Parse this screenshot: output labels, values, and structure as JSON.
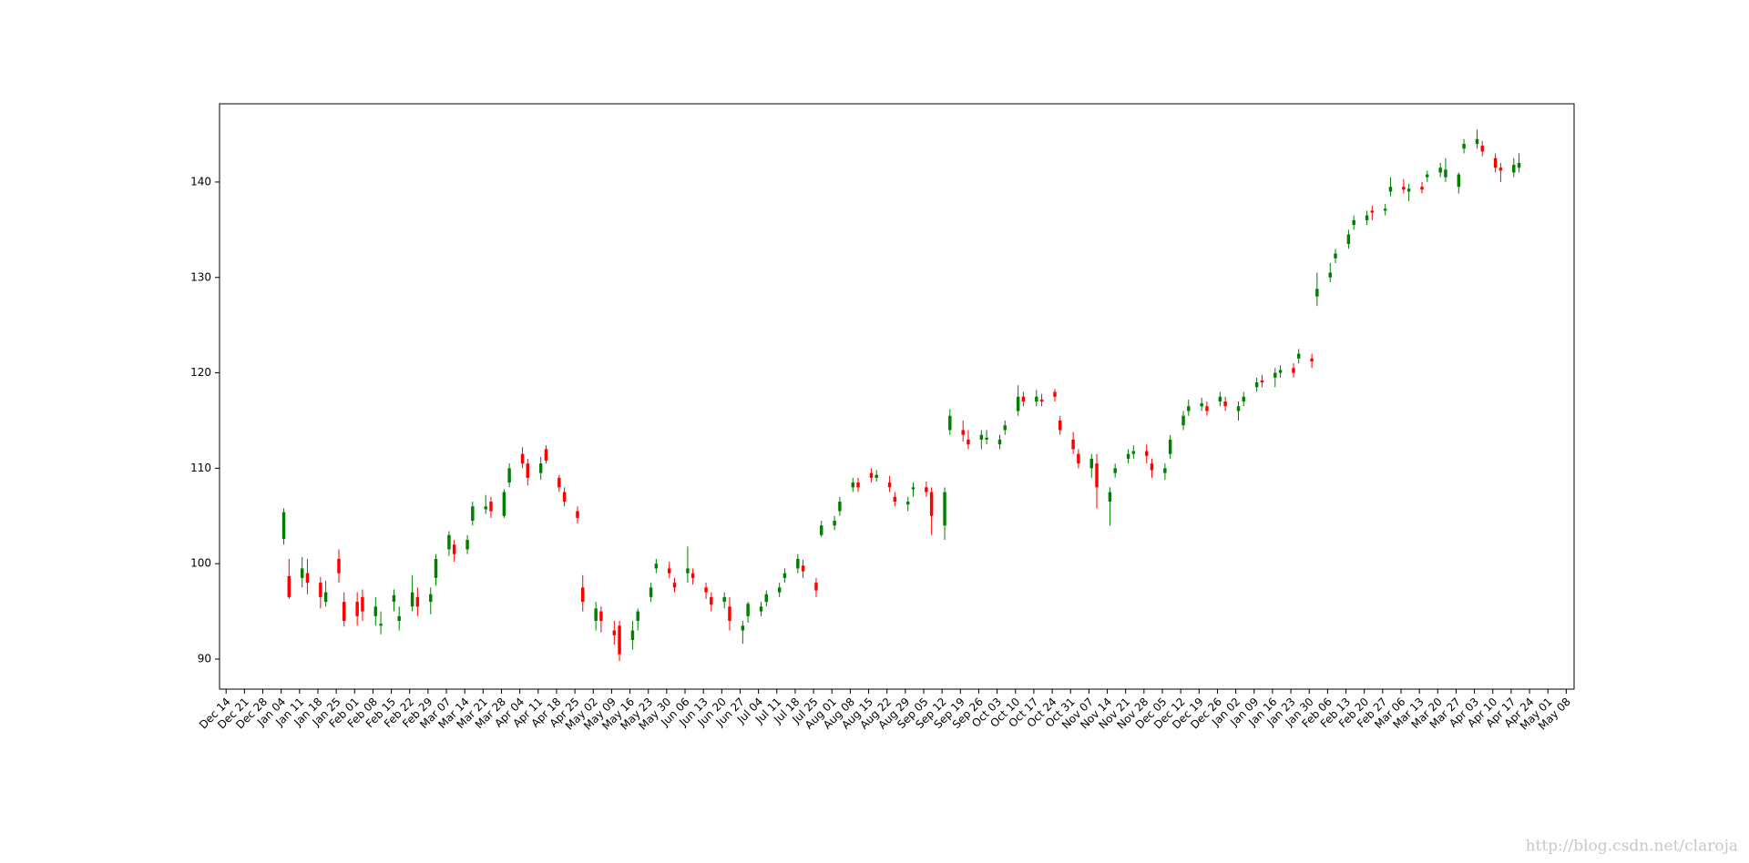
{
  "chart_data": {
    "type": "candlestick",
    "colorup": "green",
    "colordown": "red",
    "x": [
      22,
      24,
      29,
      31,
      36,
      38,
      43,
      45,
      50,
      52,
      57,
      59,
      64,
      66,
      71,
      73,
      78,
      80,
      85,
      87,
      92,
      94,
      99,
      101,
      106,
      108,
      113,
      115,
      120,
      122,
      127,
      129,
      134,
      136,
      141,
      143,
      148,
      150,
      155,
      157,
      162,
      164,
      169,
      171,
      176,
      178,
      183,
      185,
      190,
      192,
      197,
      199,
      204,
      206,
      211,
      213,
      218,
      220,
      225,
      227,
      232,
      234,
      239,
      241,
      246,
      248,
      253,
      255,
      260,
      262,
      267,
      269,
      274,
      276,
      281,
      283,
      288,
      290,
      295,
      297,
      302,
      304,
      309,
      311,
      316,
      318,
      323,
      325,
      330,
      332,
      337,
      339,
      344,
      346,
      351,
      353,
      358,
      360,
      365,
      367,
      372,
      374,
      379,
      381,
      386,
      388,
      393,
      395,
      400,
      402,
      407,
      409,
      414,
      416,
      421,
      423,
      428,
      430,
      435,
      437,
      442,
      444,
      449,
      451,
      456,
      458,
      463,
      465,
      470,
      472,
      477,
      479,
      484,
      486,
      491,
      493
    ],
    "open": [
      102.6,
      98.7,
      98.5,
      99.0,
      98.0,
      96.0,
      100.5,
      96.0,
      96.0,
      96.5,
      94.5,
      93.5,
      96.0,
      94.0,
      95.5,
      96.5,
      96.0,
      98.5,
      101.5,
      102.0,
      101.5,
      104.5,
      105.7,
      106.5,
      105.0,
      108.5,
      111.5,
      110.5,
      109.5,
      112.0,
      109.0,
      107.5,
      105.5,
      97.5,
      94.0,
      95.0,
      93.0,
      93.5,
      92.0,
      94.0,
      96.5,
      99.5,
      99.5,
      98.0,
      99.0,
      99.0,
      97.5,
      96.5,
      96.0,
      95.5,
      93.0,
      94.5,
      95.0,
      96.0,
      97.0,
      98.5,
      99.5,
      99.8,
      98.0,
      103.0,
      104.0,
      105.5,
      108.0,
      108.5,
      109.5,
      109.0,
      108.5,
      107.0,
      106.2,
      107.8,
      108.0,
      107.5,
      104.0,
      114.0,
      114.0,
      113.0,
      113.0,
      113.0,
      112.5,
      114.0,
      116.0,
      117.5,
      117.0,
      117.2,
      118.0,
      115.0,
      113.0,
      111.5,
      110.0,
      110.5,
      106.5,
      109.5,
      111.0,
      111.5,
      111.8,
      110.5,
      109.5,
      111.5,
      114.5,
      116.0,
      116.5,
      116.5,
      117.0,
      117.0,
      116.0,
      117.0,
      118.5,
      119.2,
      119.5,
      120.0,
      120.5,
      121.5,
      121.5,
      128.0,
      130.0,
      132.0,
      133.5,
      135.5,
      136.0,
      137.0,
      137.0,
      139.0,
      139.5,
      139.0,
      139.5,
      140.5,
      141.0,
      140.5,
      139.5,
      143.5,
      144.0,
      143.8,
      142.5,
      141.5,
      141.0,
      141.5
    ],
    "high": [
      105.8,
      100.5,
      100.7,
      100.5,
      98.6,
      98.2,
      101.5,
      97.0,
      97.0,
      97.3,
      96.5,
      95.0,
      97.3,
      95.5,
      98.8,
      97.5,
      97.5,
      101.0,
      103.4,
      102.5,
      103.0,
      106.5,
      107.2,
      107.0,
      107.8,
      110.5,
      112.2,
      111.0,
      111.2,
      112.4,
      109.3,
      108.0,
      106.0,
      98.8,
      96.0,
      95.5,
      94.0,
      94.0,
      94.0,
      95.3,
      98.0,
      100.5,
      100.2,
      98.5,
      101.8,
      99.5,
      98.0,
      97.0,
      97.0,
      96.5,
      94.0,
      96.0,
      96.0,
      97.2,
      98.0,
      99.5,
      101.0,
      100.4,
      98.5,
      104.5,
      105.0,
      107.0,
      109.0,
      109.0,
      110.0,
      109.8,
      109.2,
      107.5,
      107.0,
      108.5,
      108.6,
      108.0,
      108.0,
      116.2,
      115.0,
      114.0,
      114.0,
      114.0,
      113.5,
      115.0,
      118.7,
      118.0,
      118.2,
      117.8,
      118.3,
      115.5,
      113.8,
      112.0,
      111.5,
      111.5,
      108.0,
      110.5,
      112.0,
      112.4,
      112.5,
      111.0,
      110.5,
      113.5,
      116.0,
      117.2,
      117.4,
      117.0,
      118.0,
      117.5,
      117.0,
      118.0,
      119.5,
      119.8,
      120.5,
      120.8,
      121.0,
      122.5,
      122.0,
      130.5,
      131.5,
      133.0,
      135.0,
      136.5,
      137.0,
      137.5,
      137.7,
      140.5,
      140.3,
      139.8,
      140.0,
      141.2,
      142.0,
      142.5,
      141.0,
      144.5,
      145.5,
      144.3,
      143.0,
      142.0,
      142.5,
      143.0
    ],
    "low": [
      102.0,
      96.3,
      97.5,
      96.8,
      95.3,
      95.5,
      98.0,
      93.4,
      93.5,
      94.0,
      93.5,
      92.6,
      95.0,
      93.0,
      95.0,
      94.5,
      94.7,
      97.7,
      100.8,
      100.2,
      101.0,
      104.0,
      105.2,
      104.8,
      104.8,
      108.0,
      110.0,
      108.2,
      108.8,
      110.5,
      107.5,
      106.0,
      104.2,
      95.0,
      93.0,
      92.8,
      91.5,
      89.8,
      91.0,
      93.0,
      96.0,
      99.0,
      98.5,
      97.0,
      98.0,
      97.8,
      96.3,
      95.0,
      95.3,
      93.0,
      91.6,
      93.8,
      94.5,
      95.5,
      96.5,
      98.0,
      99.0,
      98.5,
      96.5,
      102.8,
      103.5,
      105.0,
      107.5,
      107.5,
      108.5,
      108.6,
      107.5,
      106.0,
      105.5,
      107.0,
      107.0,
      103.0,
      102.5,
      113.5,
      112.8,
      112.0,
      112.0,
      112.5,
      112.0,
      113.5,
      115.5,
      116.5,
      116.5,
      116.5,
      117.0,
      113.5,
      111.5,
      110.0,
      109.0,
      105.8,
      104.0,
      109.0,
      110.5,
      111.0,
      110.5,
      109.0,
      108.8,
      111.0,
      114.0,
      115.5,
      116.0,
      115.5,
      116.5,
      116.0,
      115.0,
      116.5,
      118.0,
      118.5,
      118.5,
      119.5,
      119.5,
      121.0,
      120.5,
      127.0,
      129.5,
      131.5,
      133.0,
      135.0,
      135.5,
      136.0,
      136.5,
      138.5,
      138.8,
      138.0,
      138.8,
      140.0,
      140.5,
      140.0,
      138.8,
      143.0,
      143.5,
      142.7,
      141.0,
      140.0,
      140.5,
      141.0
    ],
    "close": [
      105.4,
      96.5,
      99.5,
      98.0,
      96.5,
      97.0,
      99.0,
      94.0,
      94.5,
      95.0,
      95.5,
      93.7,
      96.7,
      94.5,
      97.0,
      95.5,
      96.8,
      100.5,
      103.0,
      101.0,
      102.5,
      106.0,
      106.0,
      105.5,
      107.5,
      110.0,
      110.5,
      109.0,
      110.5,
      110.8,
      108.0,
      106.5,
      104.8,
      96.0,
      95.3,
      94.0,
      92.5,
      90.5,
      93.0,
      95.0,
      97.5,
      100.0,
      99.0,
      97.5,
      99.5,
      98.5,
      97.0,
      95.7,
      96.5,
      94.0,
      93.5,
      95.8,
      95.5,
      96.8,
      97.5,
      99.0,
      100.5,
      99.2,
      97.2,
      104.0,
      104.5,
      106.5,
      108.5,
      108.0,
      109.0,
      109.3,
      108.0,
      106.5,
      106.5,
      108.0,
      107.5,
      105.0,
      107.5,
      115.5,
      113.5,
      112.5,
      113.5,
      113.2,
      113.0,
      114.5,
      117.5,
      117.0,
      117.5,
      117.0,
      117.5,
      114.0,
      112.0,
      110.5,
      111.0,
      108.0,
      107.5,
      110.0,
      111.5,
      111.8,
      111.3,
      109.8,
      110.0,
      113.0,
      115.5,
      116.5,
      116.8,
      116.0,
      117.5,
      116.5,
      116.5,
      117.5,
      119.0,
      119.0,
      120.0,
      120.3,
      120.0,
      122.0,
      121.2,
      128.8,
      130.5,
      132.5,
      134.5,
      136.0,
      136.5,
      136.8,
      137.2,
      139.5,
      139.2,
      139.3,
      139.2,
      140.8,
      141.5,
      141.3,
      140.8,
      144.0,
      144.5,
      143.2,
      141.5,
      141.2,
      141.8,
      142.0
    ],
    "xlim": [
      -2.5,
      514
    ],
    "xticks": [
      {
        "value": 0,
        "label": "Dec 14"
      },
      {
        "value": 7,
        "label": "Dec 21"
      },
      {
        "value": 14,
        "label": "Dec 28"
      },
      {
        "value": 21,
        "label": "Jan 04"
      },
      {
        "value": 28,
        "label": "Jan 11"
      },
      {
        "value": 35,
        "label": "Jan 18"
      },
      {
        "value": 42,
        "label": "Jan 25"
      },
      {
        "value": 49,
        "label": "Feb 01"
      },
      {
        "value": 56,
        "label": "Feb 08"
      },
      {
        "value": 63,
        "label": "Feb 15"
      },
      {
        "value": 70,
        "label": "Feb 22"
      },
      {
        "value": 77,
        "label": "Feb 29"
      },
      {
        "value": 84,
        "label": "Mar 07"
      },
      {
        "value": 91,
        "label": "Mar 14"
      },
      {
        "value": 98,
        "label": "Mar 21"
      },
      {
        "value": 105,
        "label": "Mar 28"
      },
      {
        "value": 112,
        "label": "Apr 04"
      },
      {
        "value": 119,
        "label": "Apr 11"
      },
      {
        "value": 126,
        "label": "Apr 18"
      },
      {
        "value": 133,
        "label": "Apr 25"
      },
      {
        "value": 140,
        "label": "May 02"
      },
      {
        "value": 147,
        "label": "May 09"
      },
      {
        "value": 154,
        "label": "May 16"
      },
      {
        "value": 161,
        "label": "May 23"
      },
      {
        "value": 168,
        "label": "May 30"
      },
      {
        "value": 175,
        "label": "Jun 06"
      },
      {
        "value": 182,
        "label": "Jun 13"
      },
      {
        "value": 189,
        "label": "Jun 20"
      },
      {
        "value": 196,
        "label": "Jun 27"
      },
      {
        "value": 203,
        "label": "Jul 04"
      },
      {
        "value": 210,
        "label": "Jul 11"
      },
      {
        "value": 217,
        "label": "Jul 18"
      },
      {
        "value": 224,
        "label": "Jul 25"
      },
      {
        "value": 231,
        "label": "Aug 01"
      },
      {
        "value": 238,
        "label": "Aug 08"
      },
      {
        "value": 245,
        "label": "Aug 15"
      },
      {
        "value": 252,
        "label": "Aug 22"
      },
      {
        "value": 259,
        "label": "Aug 29"
      },
      {
        "value": 266,
        "label": "Sep 05"
      },
      {
        "value": 273,
        "label": "Sep 12"
      },
      {
        "value": 280,
        "label": "Sep 19"
      },
      {
        "value": 287,
        "label": "Sep 26"
      },
      {
        "value": 294,
        "label": "Oct 03"
      },
      {
        "value": 301,
        "label": "Oct 10"
      },
      {
        "value": 308,
        "label": "Oct 17"
      },
      {
        "value": 315,
        "label": "Oct 24"
      },
      {
        "value": 322,
        "label": "Oct 31"
      },
      {
        "value": 329,
        "label": "Nov 07"
      },
      {
        "value": 336,
        "label": "Nov 14"
      },
      {
        "value": 343,
        "label": "Nov 21"
      },
      {
        "value": 350,
        "label": "Nov 28"
      },
      {
        "value": 357,
        "label": "Dec 05"
      },
      {
        "value": 364,
        "label": "Dec 12"
      },
      {
        "value": 371,
        "label": "Dec 19"
      },
      {
        "value": 378,
        "label": "Dec 26"
      },
      {
        "value": 385,
        "label": "Jan 02"
      },
      {
        "value": 392,
        "label": "Jan 09"
      },
      {
        "value": 399,
        "label": "Jan 16"
      },
      {
        "value": 406,
        "label": "Jan 23"
      },
      {
        "value": 413,
        "label": "Jan 30"
      },
      {
        "value": 420,
        "label": "Feb 06"
      },
      {
        "value": 427,
        "label": "Feb 13"
      },
      {
        "value": 434,
        "label": "Feb 20"
      },
      {
        "value": 441,
        "label": "Feb 27"
      },
      {
        "value": 448,
        "label": "Mar 06"
      },
      {
        "value": 455,
        "label": "Mar 13"
      },
      {
        "value": 462,
        "label": "Mar 20"
      },
      {
        "value": 469,
        "label": "Mar 27"
      },
      {
        "value": 476,
        "label": "Apr 03"
      },
      {
        "value": 483,
        "label": "Apr 10"
      },
      {
        "value": 490,
        "label": "Apr 17"
      },
      {
        "value": 497,
        "label": "Apr 24"
      },
      {
        "value": 504,
        "label": "May 01"
      },
      {
        "value": 511,
        "label": "May 08"
      }
    ],
    "ylim": [
      86.85,
      148.2
    ],
    "yticks": [
      90,
      100,
      110,
      120,
      130,
      140
    ],
    "grid": false,
    "watermark": "http://blog.csdn.net/claroja"
  }
}
